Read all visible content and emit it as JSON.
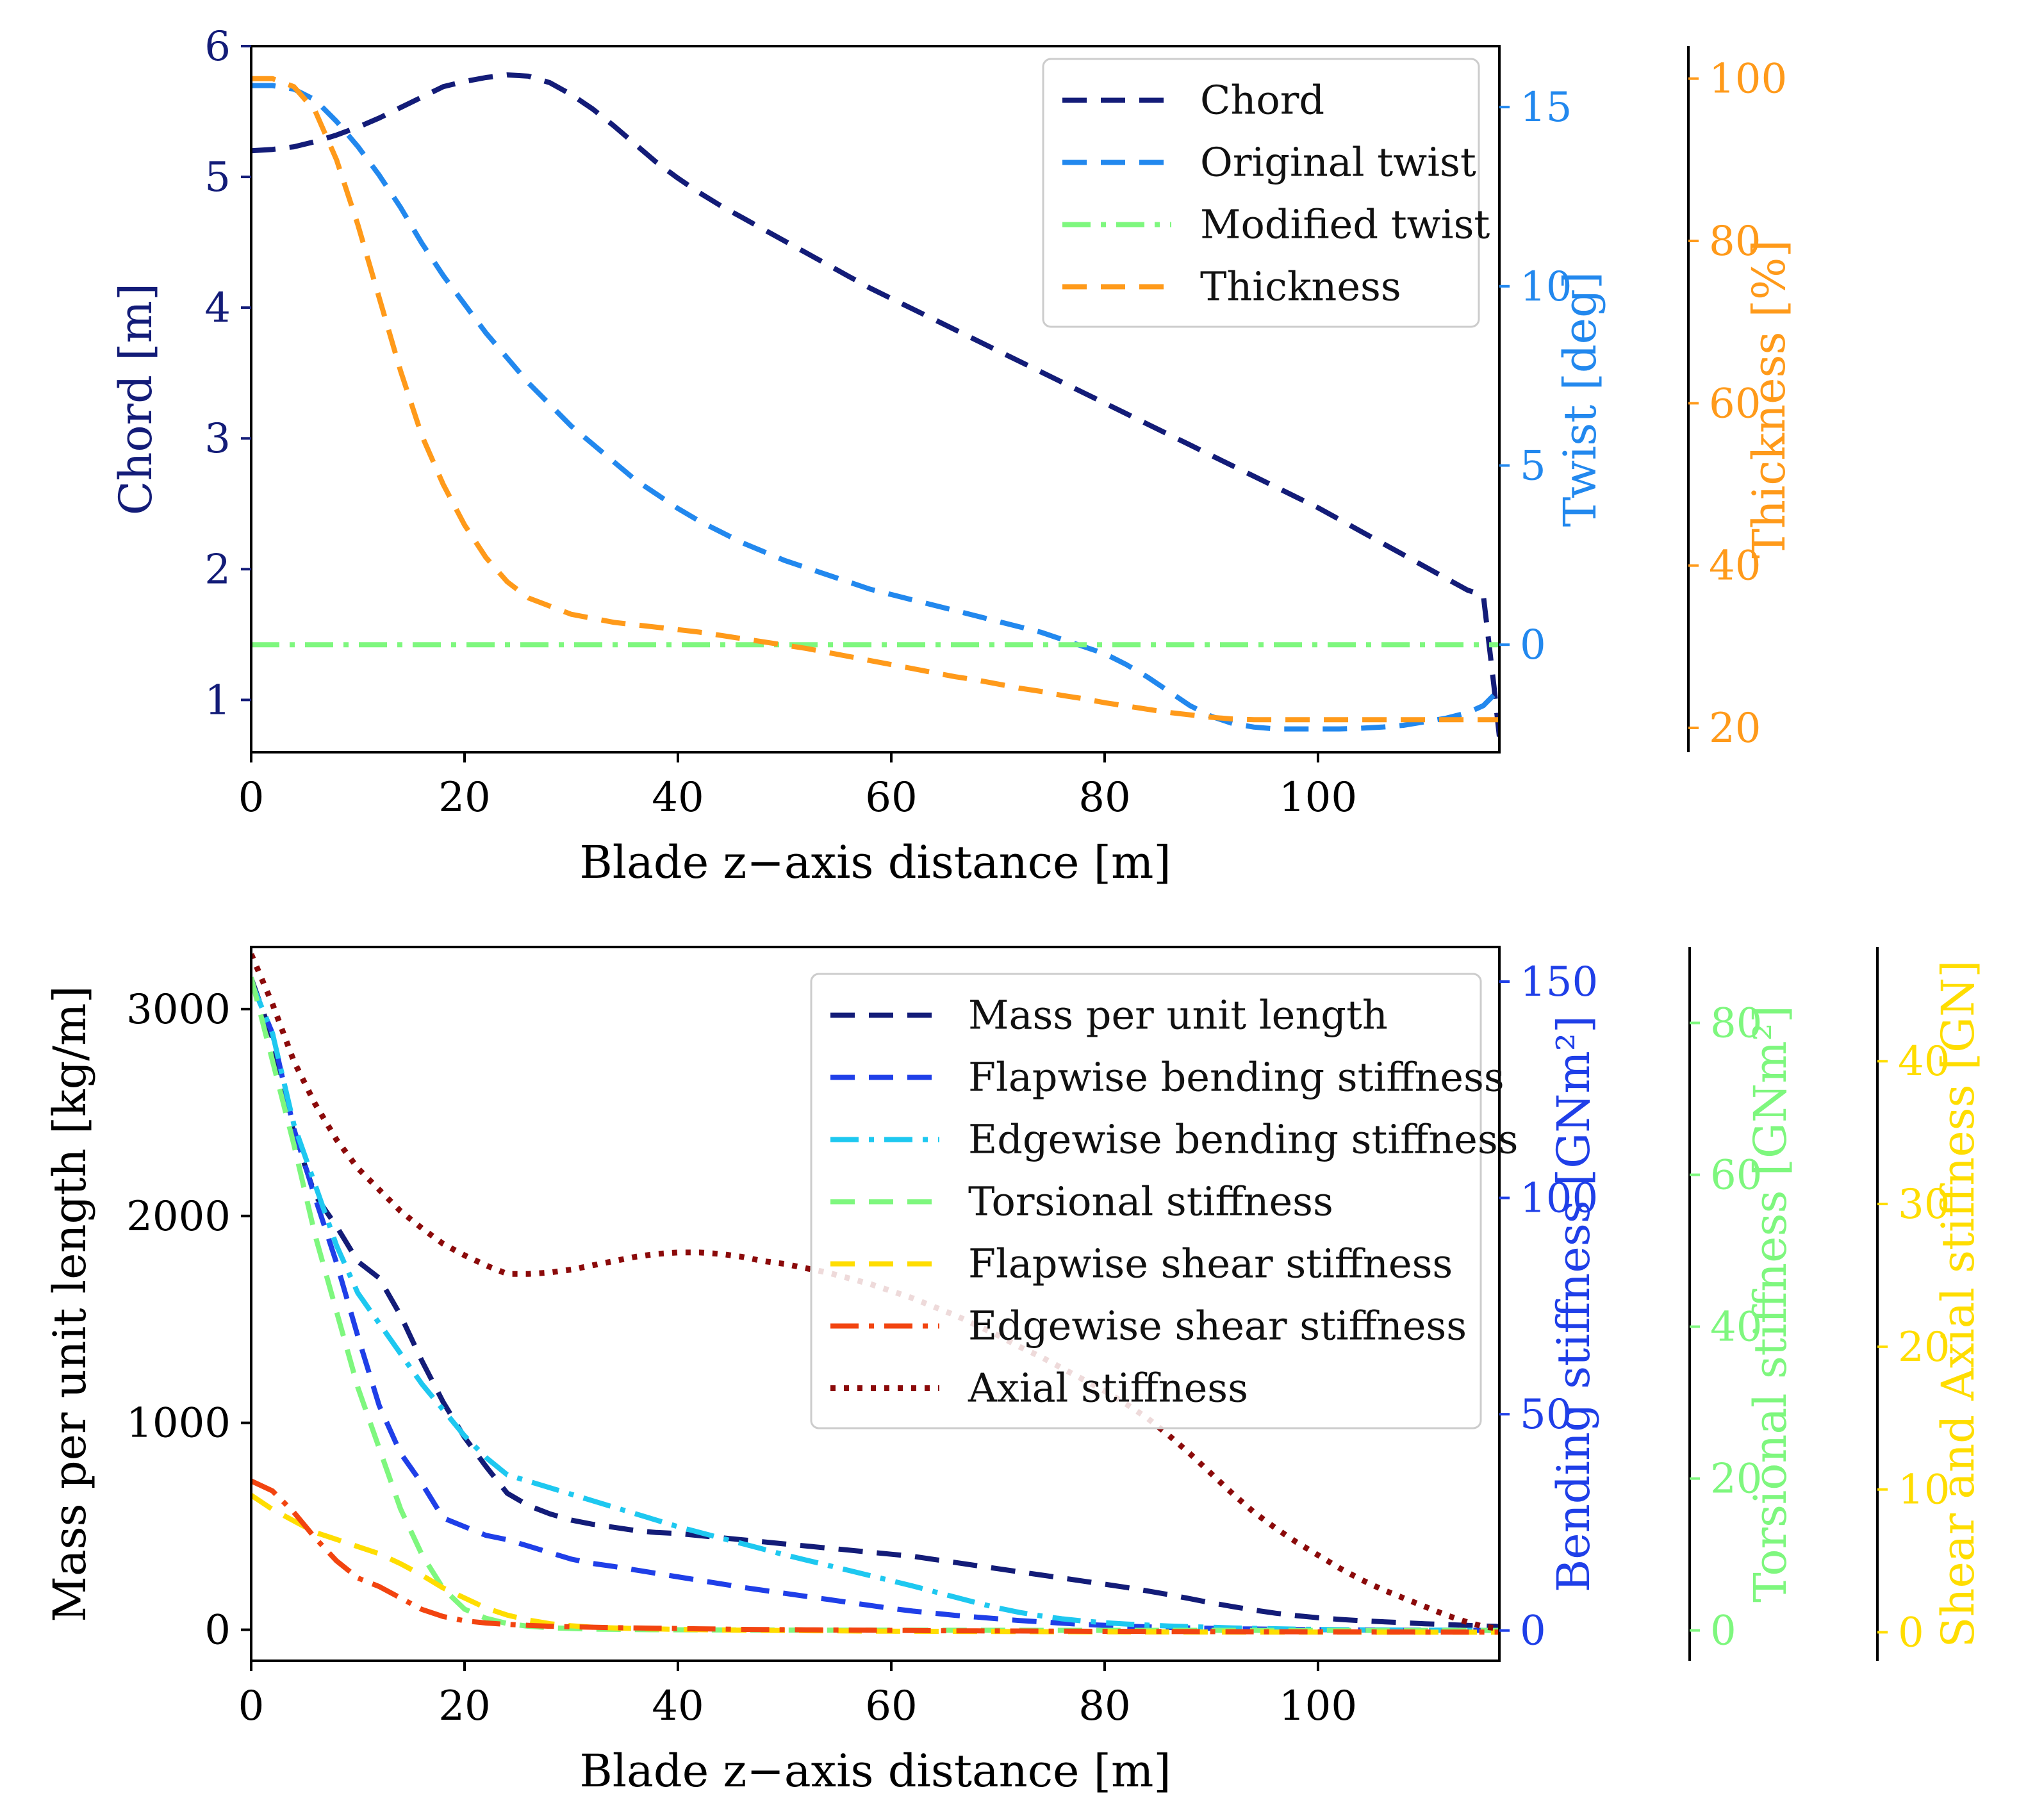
{
  "charts": [
    {
      "id": "top",
      "type": "line",
      "x": [
        0,
        2,
        4,
        6,
        8,
        10,
        12,
        14,
        16,
        18,
        20,
        22,
        24,
        26,
        28,
        30,
        32,
        34,
        36,
        38,
        40,
        42,
        44,
        46,
        48,
        50,
        52,
        54,
        56,
        58,
        60,
        62,
        64,
        66,
        68,
        70,
        72,
        74,
        76,
        78,
        80,
        82,
        84,
        86,
        88,
        90,
        92,
        94,
        96,
        98,
        100,
        102,
        104,
        106,
        108,
        110,
        112,
        114,
        115.5,
        116.5,
        117
      ],
      "xlabel": "Blade z−axis distance [m]",
      "xlim": [
        0,
        117
      ],
      "xticks": [
        0,
        20,
        40,
        60,
        80,
        100
      ],
      "xtick_labels": [
        "0",
        "20",
        "40",
        "60",
        "80",
        "100"
      ],
      "axes": [
        {
          "id": "chord",
          "label": "Chord [m]",
          "color": "#131c78",
          "side": "left",
          "offset": 0,
          "ylim": [
            0.6,
            6.0
          ],
          "ticks": [
            1,
            2,
            3,
            4,
            5,
            6
          ],
          "tick_labels": [
            "1",
            "2",
            "3",
            "4",
            "5",
            "6"
          ]
        },
        {
          "id": "twist",
          "label": "Twist [deg]",
          "color": "#2288ee",
          "side": "right",
          "offset": 0,
          "ylim": [
            -3.0,
            16.7
          ],
          "ticks": [
            0,
            5,
            10,
            15
          ],
          "tick_labels": [
            "0",
            "5",
            "10",
            "15"
          ]
        },
        {
          "id": "thick",
          "label": "Thickness [%]",
          "color": "#ff9a1a",
          "side": "right",
          "offset": 1,
          "ylim": [
            17.0,
            104.0
          ],
          "ticks": [
            20,
            40,
            60,
            80,
            100
          ],
          "tick_labels": [
            "20",
            "40",
            "60",
            "80",
            "100"
          ]
        }
      ],
      "series": [
        {
          "name": "Chord",
          "axis": "chord",
          "color": "#131c78",
          "dash": "dash",
          "values": [
            5.2,
            5.21,
            5.23,
            5.27,
            5.32,
            5.38,
            5.45,
            5.53,
            5.61,
            5.69,
            5.73,
            5.76,
            5.78,
            5.77,
            5.72,
            5.63,
            5.52,
            5.39,
            5.25,
            5.11,
            4.99,
            4.88,
            4.78,
            4.69,
            4.6,
            4.51,
            4.42,
            4.33,
            4.24,
            4.15,
            4.07,
            3.99,
            3.91,
            3.83,
            3.75,
            3.67,
            3.59,
            3.51,
            3.43,
            3.35,
            3.27,
            3.19,
            3.11,
            3.03,
            2.95,
            2.87,
            2.79,
            2.71,
            2.63,
            2.55,
            2.47,
            2.38,
            2.29,
            2.2,
            2.11,
            2.02,
            1.93,
            1.84,
            1.8,
            1.1,
            0.72
          ]
        },
        {
          "name": "Original twist",
          "axis": "twist",
          "color": "#2288ee",
          "dash": "dash",
          "values": [
            15.6,
            15.6,
            15.5,
            15.2,
            14.6,
            13.9,
            13.1,
            12.2,
            11.2,
            10.3,
            9.5,
            8.7,
            8.0,
            7.3,
            6.7,
            6.1,
            5.6,
            5.1,
            4.6,
            4.2,
            3.8,
            3.45,
            3.15,
            2.85,
            2.6,
            2.35,
            2.15,
            1.95,
            1.75,
            1.55,
            1.4,
            1.25,
            1.1,
            0.95,
            0.8,
            0.65,
            0.5,
            0.35,
            0.15,
            -0.05,
            -0.25,
            -0.55,
            -0.9,
            -1.3,
            -1.7,
            -2.0,
            -2.2,
            -2.3,
            -2.35,
            -2.35,
            -2.35,
            -2.35,
            -2.33,
            -2.3,
            -2.25,
            -2.15,
            -2.05,
            -1.9,
            -1.7,
            -1.4,
            -1.3
          ]
        },
        {
          "name": "Modified twist",
          "axis": "twist",
          "color": "#7ef77e",
          "dash": "dashdot",
          "values": [
            0,
            0,
            0,
            0,
            0,
            0,
            0,
            0,
            0,
            0,
            0,
            0,
            0,
            0,
            0,
            0,
            0,
            0,
            0,
            0,
            0,
            0,
            0,
            0,
            0,
            0,
            0,
            0,
            0,
            0,
            0,
            0,
            0,
            0,
            0,
            0,
            0,
            0,
            0,
            0,
            0,
            0,
            0,
            0,
            0,
            0,
            0,
            0,
            0,
            0,
            0,
            0,
            0,
            0,
            0,
            0,
            0,
            0,
            0,
            0,
            0
          ]
        },
        {
          "name": "Thickness",
          "axis": "thick",
          "color": "#ff9a1a",
          "dash": "dash",
          "values": [
            100,
            100,
            99,
            96,
            90,
            82,
            73,
            64,
            56,
            50,
            45,
            41,
            38,
            36,
            35,
            34,
            33.5,
            33,
            32.7,
            32.4,
            32.1,
            31.8,
            31.4,
            31.0,
            30.6,
            30.2,
            29.8,
            29.3,
            28.8,
            28.3,
            27.8,
            27.3,
            26.8,
            26.3,
            25.9,
            25.4,
            24.9,
            24.5,
            24.0,
            23.6,
            23.1,
            22.7,
            22.3,
            21.9,
            21.6,
            21.3,
            21.1,
            21.0,
            21.0,
            21.0,
            21.0,
            21.0,
            21.0,
            21.0,
            21.0,
            21.0,
            21.0,
            21.0,
            21.0,
            21.0,
            21.0
          ]
        }
      ],
      "legend_position": "top-right"
    },
    {
      "id": "bottom",
      "type": "line",
      "x": [
        0,
        2,
        4,
        6,
        8,
        10,
        12,
        14,
        16,
        18,
        20,
        22,
        24,
        26,
        28,
        30,
        32,
        34,
        36,
        38,
        40,
        42,
        44,
        46,
        48,
        50,
        52,
        54,
        56,
        58,
        60,
        62,
        64,
        66,
        68,
        70,
        72,
        74,
        76,
        78,
        80,
        82,
        84,
        86,
        88,
        90,
        92,
        94,
        96,
        98,
        100,
        102,
        104,
        106,
        108,
        110,
        112,
        114,
        115.5,
        116.5,
        117
      ],
      "xlabel": "Blade z−axis distance [m]",
      "xlim": [
        0,
        117
      ],
      "xticks": [
        0,
        20,
        40,
        60,
        80,
        100
      ],
      "xtick_labels": [
        "0",
        "20",
        "40",
        "60",
        "80",
        "100"
      ],
      "axes": [
        {
          "id": "mass",
          "label": "Mass per unit length [kg/m]",
          "color": "#000000",
          "side": "left",
          "offset": 0,
          "ylim": [
            -150,
            3300
          ],
          "ticks": [
            0,
            1000,
            2000,
            3000
          ],
          "tick_labels": [
            "0",
            "1000",
            "2000",
            "3000"
          ]
        },
        {
          "id": "bend",
          "label": "Bending stiffness [GNm²]",
          "color": "#1f3fe8",
          "side": "right",
          "offset": 0,
          "ylim": [
            -7,
            158
          ],
          "ticks": [
            0,
            50,
            100,
            150
          ],
          "tick_labels": [
            "0",
            "50",
            "100",
            "150"
          ]
        },
        {
          "id": "tors",
          "label": "Torsional stiffness [GNm²]",
          "color": "#7ef77e",
          "side": "right",
          "offset": 1,
          "ylim": [
            -4,
            90
          ],
          "ticks": [
            0,
            20,
            40,
            60,
            80
          ],
          "tick_labels": [
            "0",
            "20",
            "40",
            "60",
            "80"
          ]
        },
        {
          "id": "shear",
          "label": "Shear and Axial stiffness [GN]",
          "color": "#ffdd00",
          "side": "right",
          "offset": 2,
          "ylim": [
            -2,
            48
          ],
          "ticks": [
            0,
            10,
            20,
            30,
            40
          ],
          "tick_labels": [
            "0",
            "10",
            "20",
            "30",
            "40"
          ]
        }
      ],
      "series": [
        {
          "name": "Mass per unit length",
          "axis": "mass",
          "color": "#131c78",
          "dash": "dash",
          "values": [
            3150,
            2860,
            2400,
            2100,
            1950,
            1780,
            1700,
            1520,
            1300,
            1100,
            930,
            790,
            660,
            600,
            560,
            530,
            510,
            495,
            480,
            470,
            465,
            455,
            445,
            435,
            425,
            415,
            405,
            395,
            385,
            375,
            365,
            355,
            340,
            325,
            310,
            295,
            280,
            265,
            250,
            235,
            220,
            205,
            188,
            170,
            150,
            130,
            112,
            95,
            80,
            68,
            58,
            50,
            44,
            39,
            34,
            29,
            25,
            21,
            18,
            17,
            16
          ]
        },
        {
          "name": "Flapwise bending stiffness",
          "axis": "bend",
          "color": "#1f3fe8",
          "dash": "dash",
          "values": [
            150,
            138,
            116,
            100,
            85,
            68,
            52,
            41,
            34,
            26,
            24,
            22,
            21,
            19.5,
            18,
            16.5,
            15.5,
            14.8,
            14,
            13.2,
            12.4,
            11.6,
            10.8,
            10,
            9.3,
            8.6,
            7.9,
            7.2,
            6.5,
            5.8,
            5.1,
            4.5,
            4,
            3.5,
            3.1,
            2.7,
            2.3,
            2,
            1.7,
            1.4,
            1.2,
            1.0,
            0.85,
            0.7,
            0.6,
            0.5,
            0.4,
            0.35,
            0.3,
            0.25,
            0.2,
            0.15,
            0.12,
            0.1,
            0.08,
            0.06,
            0.05,
            0.04,
            0.03,
            0.02,
            0.02
          ]
        },
        {
          "name": "Edgewise bending stiffness",
          "axis": "bend",
          "color": "#1ec8f0",
          "dash": "dashdot",
          "values": [
            150,
            138,
            117,
            103,
            89,
            78,
            71,
            64,
            57,
            51,
            45,
            40,
            36,
            34.5,
            33,
            31.5,
            30,
            28.5,
            27,
            25.5,
            24,
            22.7,
            21.4,
            20.1,
            18.8,
            17.5,
            16.3,
            15.1,
            13.9,
            12.7,
            11.5,
            10.3,
            9,
            7.7,
            6.4,
            5.2,
            4.2,
            3.4,
            2.7,
            2.2,
            1.8,
            1.5,
            1.25,
            1.05,
            0.9,
            0.75,
            0.6,
            0.5,
            0.4,
            0.32,
            0.25,
            0.2,
            0.16,
            0.12,
            0.1,
            0.08,
            0.06,
            0.05,
            0.04,
            0.03,
            0.03
          ]
        },
        {
          "name": "Torsional stiffness",
          "axis": "tors",
          "color": "#7ef77e",
          "dash": "dash",
          "values": [
            86,
            75,
            64,
            52,
            42,
            32,
            24,
            16,
            10,
            5.5,
            2.8,
            1.6,
            0.9,
            0.55,
            0.35,
            0.25,
            0.18,
            0.14,
            0.11,
            0.09,
            0.08,
            0.07,
            0.06,
            0.055,
            0.05,
            0.045,
            0.04,
            0.035,
            0.03,
            0.028,
            0.026,
            0.024,
            0.022,
            0.02,
            0.018,
            0.016,
            0.014,
            0.012,
            0.011,
            0.01,
            0.009,
            0.008,
            0.007,
            0.006,
            0.005,
            0.005,
            0.004,
            0.004,
            0.003,
            0.003,
            0.003,
            0.002,
            0.002,
            0.002,
            0.002,
            0.001,
            0.001,
            0.001,
            0.001,
            0.001,
            0.001
          ]
        },
        {
          "name": "Flapwise shear stiffness",
          "axis": "shear",
          "color": "#ffdd00",
          "dash": "dash",
          "values": [
            9.6,
            8.6,
            7.8,
            7.0,
            6.5,
            6.0,
            5.5,
            4.8,
            4.0,
            3.1,
            2.4,
            1.7,
            1.2,
            0.85,
            0.6,
            0.45,
            0.35,
            0.3,
            0.26,
            0.23,
            0.2,
            0.18,
            0.16,
            0.14,
            0.13,
            0.12,
            0.11,
            0.1,
            0.09,
            0.08,
            0.075,
            0.07,
            0.065,
            0.06,
            0.055,
            0.05,
            0.045,
            0.04,
            0.036,
            0.032,
            0.028,
            0.024,
            0.02,
            0.018,
            0.016,
            0.014,
            0.012,
            0.01,
            0.009,
            0.008,
            0.007,
            0.006,
            0.005,
            0.004,
            0.004,
            0.003,
            0.003,
            0.002,
            0.002,
            0.002,
            0.002
          ]
        },
        {
          "name": "Edgewise shear stiffness",
          "axis": "shear",
          "color": "#f24410",
          "dash": "dashdot",
          "values": [
            10.6,
            9.9,
            8.4,
            6.6,
            5.0,
            3.8,
            3.2,
            2.4,
            1.6,
            1.1,
            0.8,
            0.65,
            0.55,
            0.48,
            0.42,
            0.38,
            0.35,
            0.32,
            0.3,
            0.28,
            0.26,
            0.24,
            0.22,
            0.2,
            0.19,
            0.18,
            0.17,
            0.16,
            0.15,
            0.14,
            0.13,
            0.12,
            0.11,
            0.1,
            0.095,
            0.09,
            0.085,
            0.08,
            0.075,
            0.07,
            0.065,
            0.06,
            0.055,
            0.05,
            0.046,
            0.042,
            0.038,
            0.034,
            0.03,
            0.027,
            0.024,
            0.021,
            0.018,
            0.016,
            0.014,
            0.012,
            0.01,
            0.009,
            0.008,
            0.008,
            0.008
          ]
        },
        {
          "name": "Axial stiffness",
          "axis": "shear",
          "color": "#8b0a0a",
          "dash": "dot",
          "values": [
            47.5,
            44,
            40,
            37,
            34.5,
            32.5,
            31,
            29.5,
            28.3,
            27.2,
            26.4,
            25.7,
            25.1,
            25.1,
            25.2,
            25.4,
            25.7,
            26.0,
            26.3,
            26.5,
            26.6,
            26.6,
            26.5,
            26.3,
            26.0,
            25.8,
            25.5,
            25.2,
            24.8,
            24.4,
            23.9,
            23.4,
            22.8,
            22.2,
            21.5,
            20.8,
            20.0,
            19.3,
            18.5,
            17.7,
            16.9,
            16.0,
            15.0,
            13.8,
            12.5,
            11.1,
            9.7,
            8.4,
            7.3,
            6.3,
            5.4,
            4.5,
            3.7,
            3.0,
            2.4,
            1.8,
            1.2,
            0.7,
            0.4,
            0.3,
            0.2
          ]
        }
      ],
      "legend_position": "top-right"
    }
  ]
}
